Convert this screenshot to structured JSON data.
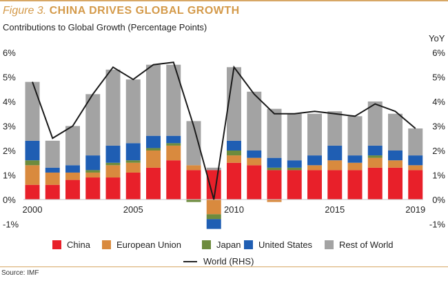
{
  "header": {
    "figure_number": "Figure 3.",
    "figure_title": "CHINA DRIVES GLOBAL GROWTH",
    "subtitle": "Contributions to Global Growth (Percentage Points)",
    "right_axis_unit": "YoY"
  },
  "footer": {
    "source": "Source: IMF"
  },
  "chart_data": {
    "type": "bar",
    "stacked": true,
    "categories": [
      "2000",
      "2001",
      "2002",
      "2003",
      "2004",
      "2005",
      "2006",
      "2007",
      "2008",
      "2009",
      "2010",
      "2011",
      "2012",
      "2013",
      "2014",
      "2015",
      "2016",
      "2017",
      "2018",
      "2019"
    ],
    "x_tick_labels": [
      {
        "index": 0,
        "label": "2000"
      },
      {
        "index": 5,
        "label": "2005"
      },
      {
        "index": 10,
        "label": "2010"
      },
      {
        "index": 15,
        "label": "2015"
      },
      {
        "index": 19,
        "label": "2019"
      }
    ],
    "y_ticks": [
      -1,
      0,
      1,
      2,
      3,
      4,
      5,
      6
    ],
    "y_tick_labels": [
      "-1%",
      "0%",
      "1%",
      "2%",
      "3%",
      "4%",
      "5%",
      "6%"
    ],
    "ylim": [
      -1.2,
      6.3
    ],
    "series": [
      {
        "name": "China",
        "color": "#e8202a",
        "values": [
          0.6,
          0.6,
          0.8,
          0.9,
          0.9,
          1.1,
          1.3,
          1.6,
          1.2,
          1.2,
          1.5,
          1.4,
          1.2,
          1.2,
          1.2,
          1.2,
          1.2,
          1.3,
          1.3,
          1.2
        ]
      },
      {
        "name": "European Union",
        "color": "#d98a3e",
        "values": [
          0.8,
          0.5,
          0.3,
          0.2,
          0.5,
          0.4,
          0.7,
          0.6,
          0.2,
          -0.6,
          0.3,
          0.3,
          -0.1,
          0.0,
          0.2,
          0.4,
          0.3,
          0.4,
          0.3,
          0.2
        ]
      },
      {
        "name": "Japan",
        "color": "#6d8b3d",
        "values": [
          0.2,
          0.0,
          0.0,
          0.1,
          0.1,
          0.1,
          0.1,
          0.1,
          -0.1,
          -0.2,
          0.2,
          0.0,
          0.1,
          0.1,
          0.0,
          0.0,
          0.0,
          0.1,
          0.0,
          0.0
        ]
      },
      {
        "name": "United States",
        "color": "#1f5eb3",
        "values": [
          0.8,
          0.2,
          0.3,
          0.6,
          0.7,
          0.7,
          0.5,
          0.3,
          0.0,
          -0.4,
          0.4,
          0.3,
          0.4,
          0.3,
          0.4,
          0.6,
          0.3,
          0.4,
          0.4,
          0.4
        ]
      },
      {
        "name": "Rest of World",
        "color": "#a3a3a3",
        "values": [
          2.4,
          1.1,
          1.6,
          2.5,
          3.1,
          2.6,
          2.9,
          2.9,
          1.8,
          0.1,
          3.0,
          2.4,
          2.0,
          1.9,
          1.7,
          1.4,
          1.6,
          1.8,
          1.5,
          1.1
        ]
      }
    ],
    "line_series": {
      "name": "World (RHS)",
      "axis": "right",
      "color": "#1a1a1a",
      "values": [
        4.8,
        2.5,
        3.0,
        4.3,
        5.4,
        4.9,
        5.5,
        5.6,
        3.0,
        0.0,
        5.4,
        4.3,
        3.5,
        3.5,
        3.6,
        3.5,
        3.4,
        3.9,
        3.6,
        2.9
      ]
    },
    "legend": {
      "position": "bottom"
    },
    "grid": false
  }
}
